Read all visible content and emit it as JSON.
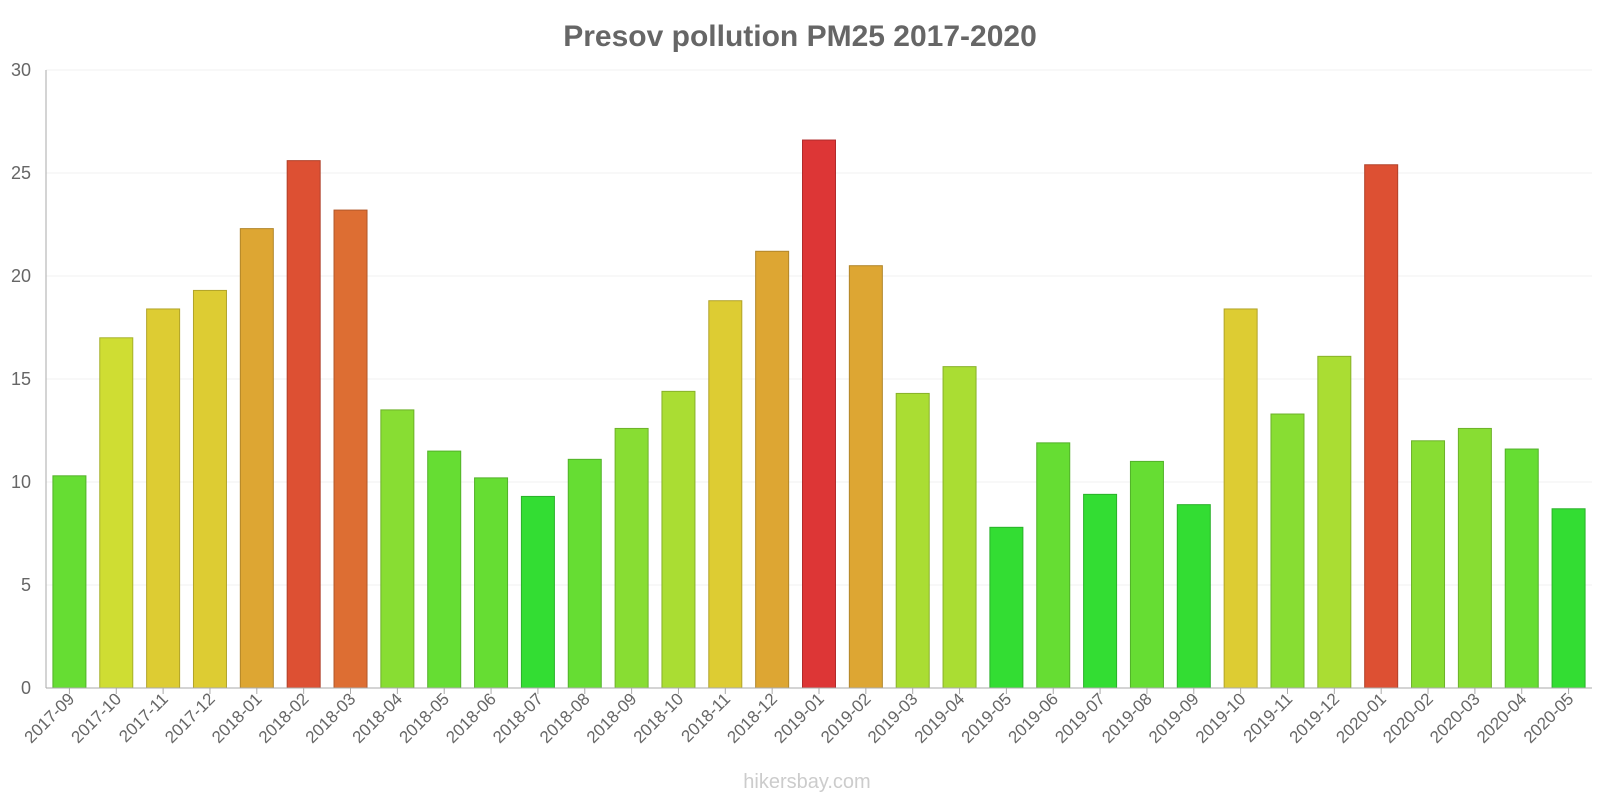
{
  "chart_data": {
    "type": "bar",
    "title": "Presov pollution PM25 2017-2020",
    "xlabel": "",
    "ylabel": "",
    "ylim": [
      0,
      30
    ],
    "yticks": [
      0,
      5,
      10,
      15,
      20,
      25,
      30
    ],
    "categories": [
      "2017-09",
      "2017-10",
      "2017-11",
      "2017-12",
      "2018-01",
      "2018-02",
      "2018-03",
      "2018-04",
      "2018-05",
      "2018-06",
      "2018-07",
      "2018-08",
      "2018-09",
      "2018-10",
      "2018-11",
      "2018-12",
      "2019-01",
      "2019-02",
      "2019-03",
      "2019-04",
      "2019-05",
      "2019-06",
      "2019-07",
      "2019-08",
      "2019-09",
      "2019-10",
      "2019-11",
      "2019-12",
      "2020-01",
      "2020-02",
      "2020-03",
      "2020-04",
      "2020-05"
    ],
    "values": [
      10.3,
      17.0,
      18.4,
      19.3,
      22.3,
      25.6,
      23.2,
      13.5,
      11.5,
      10.2,
      9.3,
      11.1,
      12.6,
      14.4,
      18.8,
      21.2,
      26.6,
      20.5,
      14.3,
      15.6,
      7.8,
      11.9,
      9.4,
      11.0,
      8.9,
      18.4,
      13.3,
      16.1,
      25.4,
      12.0,
      12.6,
      11.6,
      8.7
    ],
    "colors": {
      "very_low": "#33dd33",
      "low": "#66dd33",
      "moderate_low": "#88dd33",
      "moderate": "#aadd33",
      "elevated": "#cfdd33",
      "high": "#ddcc33",
      "very_high": "#dda633",
      "severe": "#dd6e33",
      "extreme": "#dd5033",
      "max": "#dd3636"
    }
  },
  "watermark": "hikersbay.com"
}
